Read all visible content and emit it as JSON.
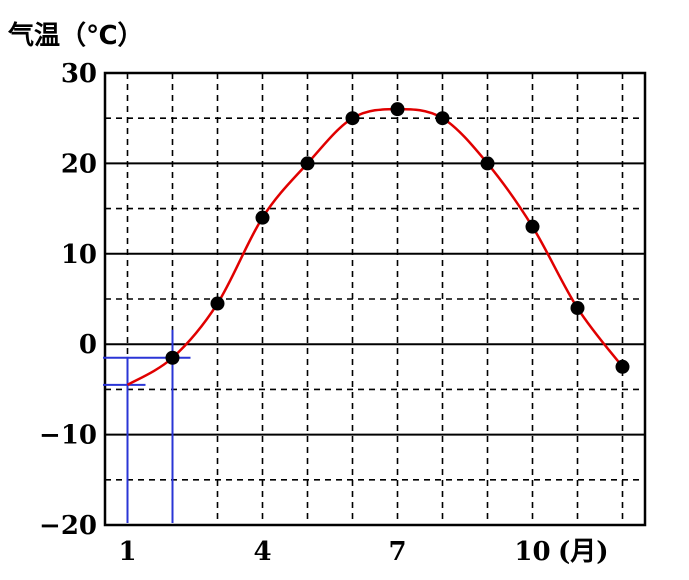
{
  "chart_data": {
    "type": "line",
    "ylabel": "气温（℃）",
    "xunit": "(月)",
    "x_ticks": [
      1,
      4,
      7,
      10
    ],
    "y_ticks": [
      30,
      20,
      10,
      0,
      -10,
      -20
    ],
    "xlim": [
      0.5,
      12.5
    ],
    "ylim": [
      -20,
      30
    ],
    "grid": "solid at multiples of 10, dashed otherwise",
    "series": [
      {
        "months": [
          1,
          2,
          3,
          4,
          5,
          6,
          7,
          8,
          9,
          10,
          11,
          12
        ],
        "values": [
          -4.5,
          -1.5,
          4.5,
          14,
          20,
          25,
          26,
          25,
          20,
          13,
          4,
          -2.5
        ],
        "curve_color": "#e00000",
        "marker_color": "#000000"
      }
    ],
    "reading_guides": {
      "color": "#2a35d6",
      "marks": [
        {
          "month": 1,
          "value": -4.5
        },
        {
          "month": 2,
          "value": -1.5
        }
      ]
    }
  }
}
